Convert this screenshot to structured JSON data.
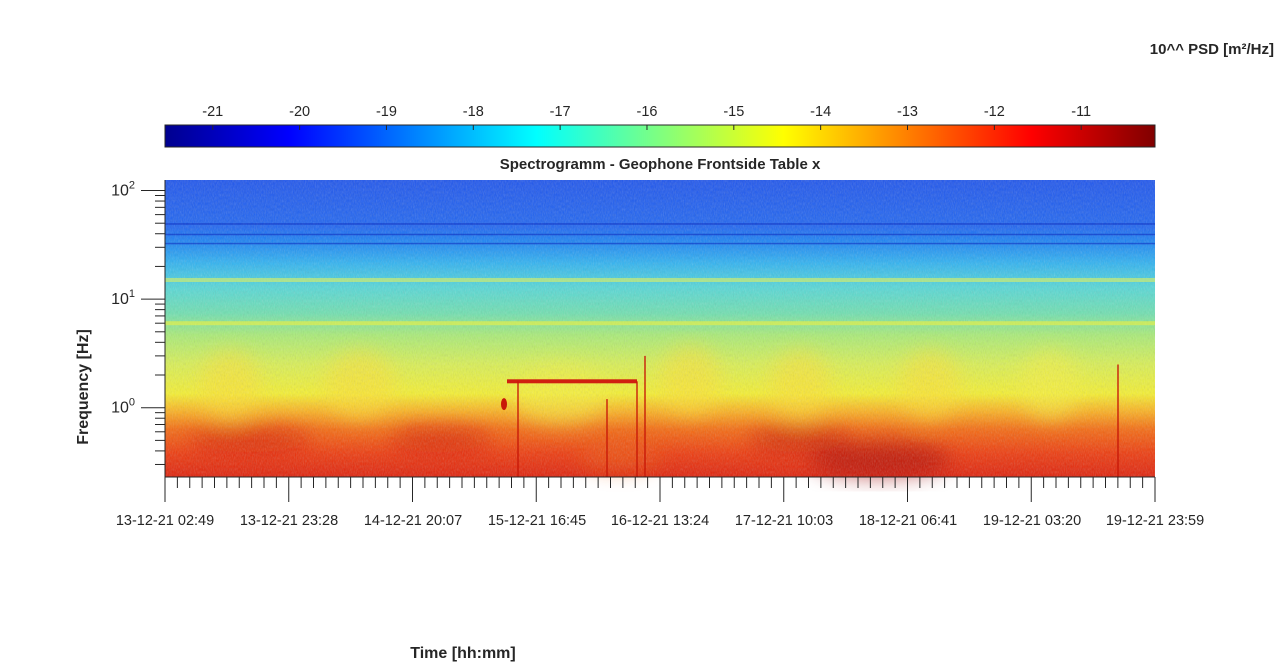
{
  "chart_data": {
    "type": "heatmap",
    "title": "Spectrogramm - Geophone Frontside Table x",
    "xlabel": "Time [hh:mm]",
    "ylabel": "Frequency [Hz]",
    "colorbar": {
      "label": "10^^ PSD [m²/Hz]",
      "ticks": [
        -21,
        -20,
        -19,
        -18,
        -17,
        -16,
        -15,
        -14,
        -13,
        -12,
        -11
      ],
      "range": [
        -21.55,
        -10.15
      ],
      "colormap": "jet",
      "location": "top"
    },
    "x_tick_labels": [
      "13-12-21  02:49",
      "13-12-21  23:28",
      "14-12-21  20:07",
      "15-12-21  16:45",
      "16-12-21  13:24",
      "17-12-21  10:03",
      "18-12-21  06:41",
      "19-12-21  03:20",
      "19-12-21  23:59"
    ],
    "y_scale": "log",
    "y_tick_labels": [
      "10^0",
      "10^1",
      "10^2"
    ],
    "y_tick_values": [
      1,
      10,
      100
    ],
    "y_range_hz": [
      0.23,
      125
    ],
    "features": [
      {
        "kind": "horizontal_line",
        "frequency_hz": 15,
        "log10_psd": -15.8
      },
      {
        "kind": "horizontal_line",
        "frequency_hz": 6,
        "log10_psd": -15.0
      },
      {
        "kind": "horizontal_line",
        "frequency_hz": 1.75,
        "log10_psd": -11.6,
        "time_span": [
          "15-12-21",
          "16-12-21"
        ]
      }
    ]
  },
  "colors": {
    "jet": [
      "#00008f",
      "#0000ff",
      "#00ffff",
      "#ffff00",
      "#ff0000",
      "#800000"
    ],
    "text": "#262626",
    "axis": "#262626"
  }
}
